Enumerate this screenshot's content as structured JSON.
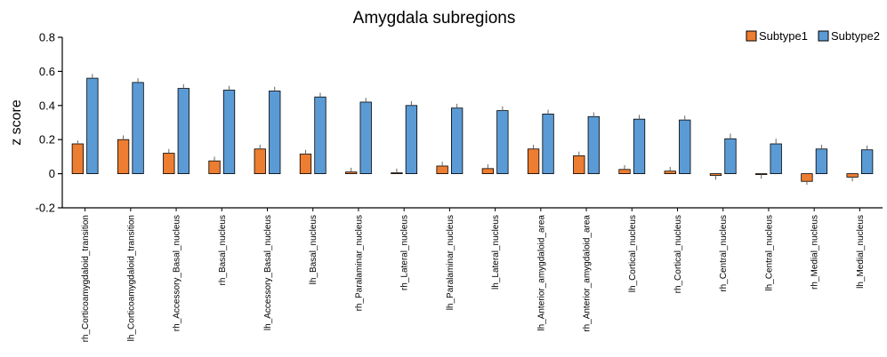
{
  "chart_data": {
    "type": "bar",
    "title": "Amygdala subregions",
    "xlabel": "",
    "ylabel": "z score",
    "ylim": [
      -0.2,
      0.8
    ],
    "yticks": [
      -0.2,
      0,
      0.2,
      0.4,
      0.6,
      0.8
    ],
    "ytick_labels": [
      "-0.2",
      "0",
      "0.2",
      "0.4",
      "0.6",
      "0.8"
    ],
    "grid": false,
    "legend_position": "top-right",
    "error_bars": true,
    "categories": [
      "rh_Corticoamygdaloid_transition",
      "lh_Corticoamygdaloid_transition",
      "rh_Accessory_Basal_nucleus",
      "rh_Basal_nucleus",
      "lh_Accessory_Basal_nucleus",
      "lh_Basal_nucleus",
      "rh_Paralaminar_nucleus",
      "rh_Lateral_nucleus",
      "lh_Paralaminar_nucleus",
      "lh_Lateral_nucleus",
      "lh_Anterior_amygdaloid_area",
      "rh_Anterior_amygdaloid_area",
      "lh_Cortical_nucleus",
      "rh_Cortical_nucleus",
      "rh_Central_nucleus",
      "lh_Central_nucleus",
      "rh_Medial_nucleus",
      "lh_Medial_nucleus"
    ],
    "series": [
      {
        "name": "Subtype1",
        "color": "#ED7D31",
        "values": [
          0.175,
          0.2,
          0.12,
          0.075,
          0.145,
          0.115,
          0.01,
          0.005,
          0.045,
          0.03,
          0.145,
          0.105,
          0.025,
          0.015,
          -0.01,
          -0.005,
          -0.045,
          -0.02
        ],
        "errors": [
          0.02,
          0.025,
          0.025,
          0.025,
          0.025,
          0.025,
          0.025,
          0.025,
          0.025,
          0.025,
          0.025,
          0.025,
          0.025,
          0.025,
          0.025,
          0.025,
          0.02,
          0.025
        ]
      },
      {
        "name": "Subtype2",
        "color": "#5B9BD5",
        "values": [
          0.56,
          0.535,
          0.5,
          0.49,
          0.485,
          0.45,
          0.42,
          0.4,
          0.385,
          0.37,
          0.35,
          0.335,
          0.32,
          0.315,
          0.205,
          0.175,
          0.145,
          0.14
        ],
        "errors": [
          0.025,
          0.025,
          0.025,
          0.025,
          0.025,
          0.025,
          0.025,
          0.025,
          0.025,
          0.025,
          0.025,
          0.025,
          0.025,
          0.025,
          0.03,
          0.03,
          0.025,
          0.025
        ]
      }
    ]
  }
}
